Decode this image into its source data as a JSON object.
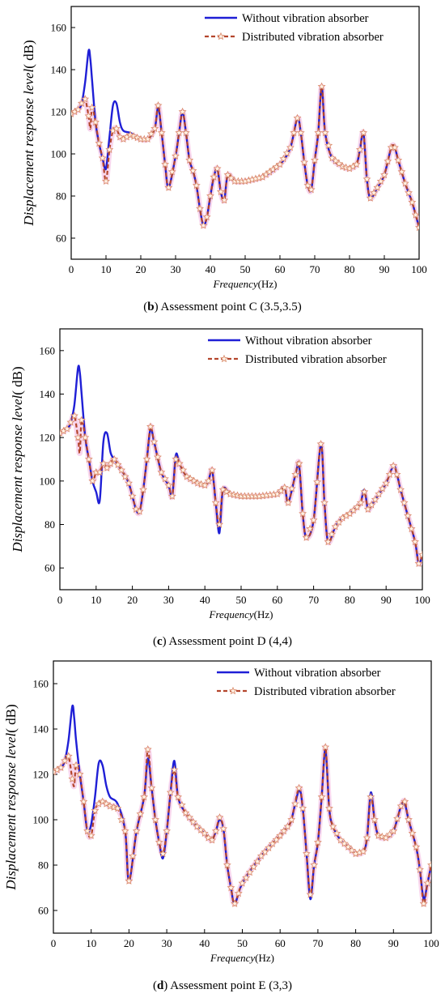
{
  "colors": {
    "without": "#1f1fd6",
    "distributed": "#b4452c",
    "marker_fill": "#fff2e6",
    "marker_stroke": "#d98a6a",
    "glow": "#f5c4e6"
  },
  "legend": {
    "without": "Without vibration absorber",
    "distributed": "Distributed vibration absorber"
  },
  "chart_data": [
    {
      "type": "line",
      "panel_letter": "b",
      "caption": "Assessment point C (3.5,3.5)",
      "xlabel_italic": "Frequency",
      "xlabel_unit": "(Hz)",
      "ylabel_italic": "Displacement response level",
      "ylabel_unit": "( dB)",
      "xlim": [
        0,
        100
      ],
      "ylim": [
        50,
        170
      ],
      "xticks": [
        0,
        10,
        20,
        30,
        40,
        50,
        60,
        70,
        80,
        90,
        100
      ],
      "yticks": [
        60,
        80,
        100,
        120,
        140,
        160
      ],
      "legend_position": "top-right",
      "series": [
        {
          "name": "Without vibration absorber",
          "x": [
            0,
            2,
            3,
            4,
            5,
            5.5,
            6,
            7,
            8,
            9,
            10,
            11,
            12,
            13,
            14,
            15,
            17,
            20,
            22,
            24,
            25,
            26,
            27,
            28,
            30,
            31,
            32,
            33,
            34,
            35,
            36,
            37,
            38,
            39,
            40,
            41,
            42,
            43,
            44,
            45,
            47,
            50,
            55,
            60,
            63,
            65,
            66,
            67,
            68,
            69,
            70,
            71,
            72,
            73,
            75,
            78,
            80,
            82,
            83,
            84,
            85,
            86,
            88,
            90,
            92,
            93,
            94,
            96,
            98,
            100
          ],
          "y": [
            119,
            121,
            124,
            134,
            149,
            145,
            135,
            115,
            105,
            98,
            93,
            108,
            123,
            124,
            115,
            111,
            110,
            107,
            107,
            112,
            122,
            110,
            95,
            84,
            99,
            110,
            120,
            110,
            97,
            92,
            85,
            74,
            66,
            70,
            80,
            89,
            93,
            82,
            78,
            90,
            87,
            87,
            89,
            95,
            103,
            117,
            110,
            96,
            85,
            83,
            97,
            110,
            132,
            110,
            98,
            94,
            93,
            95,
            102,
            110,
            88,
            79,
            84,
            90,
            103,
            103,
            97,
            86,
            77,
            65
          ]
        },
        {
          "name": "Distributed vibration absorber",
          "x": [
            0,
            2,
            3,
            4,
            5,
            5.5,
            6,
            7,
            8,
            9,
            10,
            11,
            12,
            13,
            14,
            15,
            17,
            20,
            22,
            24,
            25,
            26,
            27,
            28,
            30,
            31,
            32,
            33,
            34,
            35,
            36,
            37,
            38,
            39,
            40,
            41,
            42,
            43,
            44,
            45,
            47,
            50,
            55,
            60,
            63,
            65,
            66,
            67,
            68,
            69,
            70,
            71,
            72,
            73,
            75,
            78,
            80,
            82,
            83,
            84,
            85,
            86,
            88,
            90,
            92,
            93,
            94,
            96,
            98,
            100
          ],
          "y": [
            119,
            121,
            124,
            126,
            118,
            112,
            122,
            115,
            105,
            98,
            87,
            102,
            111,
            112,
            108,
            107,
            109,
            107,
            107,
            112,
            123,
            110,
            95,
            84,
            99,
            110,
            120,
            110,
            97,
            92,
            85,
            74,
            66,
            70,
            80,
            89,
            93,
            82,
            78,
            90,
            87,
            87,
            89,
            95,
            103,
            117,
            110,
            96,
            85,
            83,
            97,
            110,
            132,
            110,
            98,
            94,
            93,
            95,
            102,
            110,
            88,
            79,
            84,
            90,
            103,
            103,
            97,
            86,
            77,
            65
          ]
        }
      ]
    },
    {
      "type": "line",
      "panel_letter": "c",
      "caption": "Assessment point D (4,4)",
      "xlabel_italic": "Frequency",
      "xlabel_unit": "(Hz)",
      "ylabel_italic": "Displacement response level",
      "ylabel_unit": "( dB)",
      "xlim": [
        0,
        100
      ],
      "ylim": [
        50,
        170
      ],
      "xticks": [
        0,
        10,
        20,
        30,
        40,
        50,
        60,
        70,
        80,
        90,
        100
      ],
      "yticks": [
        60,
        80,
        100,
        120,
        140,
        160
      ],
      "legend_position": "top-right",
      "series": [
        {
          "name": "Without vibration absorber",
          "x": [
            0,
            2,
            3,
            4,
            5,
            5.5,
            6,
            7,
            8,
            9,
            10,
            11,
            12,
            13,
            14,
            15,
            17,
            19,
            21,
            22,
            23,
            24,
            25,
            26,
            28,
            30,
            31,
            32,
            33,
            35,
            38,
            40,
            41,
            42,
            43,
            44,
            45,
            47,
            50,
            55,
            60,
            62,
            63,
            65,
            66,
            67,
            68,
            70,
            72,
            73,
            74,
            76,
            78,
            80,
            82,
            83,
            84,
            85,
            86,
            88,
            90,
            92,
            93,
            94,
            96,
            98,
            99,
            100
          ],
          "y": [
            122,
            124,
            127,
            135,
            152,
            150,
            140,
            120,
            110,
            100,
            95,
            91,
            118,
            122,
            113,
            110,
            105,
            99,
            87,
            86,
            96,
            110,
            124,
            118,
            104,
            98,
            93,
            112,
            108,
            102,
            99,
            98,
            100,
            105,
            90,
            76,
            96,
            94,
            93,
            93,
            94,
            97,
            90,
            103,
            107,
            85,
            74,
            82,
            117,
            90,
            72,
            79,
            83,
            85,
            88,
            90,
            96,
            87,
            89,
            94,
            99,
            107,
            103,
            96,
            84,
            72,
            62,
            66
          ]
        },
        {
          "name": "Distributed vibration absorber",
          "x": [
            0,
            2,
            3,
            4,
            5,
            5.5,
            6,
            7,
            8,
            9,
            10,
            11,
            12,
            13,
            14,
            15,
            17,
            19,
            21,
            22,
            23,
            24,
            25,
            26,
            28,
            30,
            31,
            32,
            33,
            35,
            38,
            40,
            41,
            42,
            43,
            44,
            45,
            47,
            50,
            55,
            60,
            62,
            63,
            65,
            66,
            67,
            68,
            70,
            72,
            73,
            74,
            76,
            78,
            80,
            82,
            83,
            84,
            85,
            86,
            88,
            90,
            92,
            93,
            94,
            96,
            98,
            99,
            100
          ],
          "y": [
            122,
            124,
            127,
            130,
            120,
            113,
            128,
            120,
            110,
            100,
            104,
            104,
            108,
            106,
            108,
            110,
            105,
            99,
            87,
            86,
            96,
            110,
            125,
            118,
            104,
            98,
            93,
            110,
            108,
            102,
            99,
            98,
            100,
            105,
            90,
            80,
            96,
            94,
            93,
            93,
            94,
            97,
            90,
            103,
            108,
            85,
            74,
            82,
            117,
            90,
            72,
            79,
            83,
            85,
            88,
            90,
            95,
            87,
            89,
            94,
            99,
            107,
            103,
            96,
            84,
            72,
            62,
            66
          ]
        }
      ]
    },
    {
      "type": "line",
      "panel_letter": "d",
      "caption": "Assessment point E (3,3)",
      "xlabel_italic": "Frequency",
      "xlabel_unit": "(Hz)",
      "ylabel_italic": "Displacement response level",
      "ylabel_unit": "( dB)",
      "xlim": [
        0,
        100
      ],
      "ylim": [
        50,
        170
      ],
      "xticks": [
        0,
        10,
        20,
        30,
        40,
        50,
        60,
        70,
        80,
        90,
        100
      ],
      "yticks": [
        60,
        80,
        100,
        120,
        140,
        160
      ],
      "legend_position": "top-right",
      "series": [
        {
          "name": "Without vibration absorber",
          "x": [
            0,
            2,
            3,
            4,
            5,
            5.5,
            6,
            7,
            8,
            9,
            10,
            11,
            12,
            13,
            14,
            15,
            17,
            19,
            20,
            22,
            24,
            25,
            26,
            27,
            28,
            29,
            30,
            31,
            32,
            33,
            35,
            38,
            40,
            41,
            42,
            43,
            44,
            45,
            46,
            47,
            48,
            50,
            55,
            60,
            62,
            63,
            65,
            66,
            67,
            68,
            69,
            70,
            71,
            72,
            73,
            74,
            76,
            78,
            80,
            82,
            83,
            84,
            85,
            86,
            88,
            90,
            92,
            93,
            94,
            96,
            97,
            98,
            99,
            100
          ],
          "y": [
            121,
            123,
            126,
            135,
            150,
            145,
            135,
            120,
            108,
            95,
            98,
            110,
            125,
            124,
            115,
            110,
            107,
            95,
            73,
            95,
            110,
            127,
            114,
            100,
            90,
            83,
            95,
            112,
            126,
            110,
            103,
            97,
            94,
            92,
            91,
            95,
            100,
            96,
            80,
            70,
            63,
            72,
            84,
            93,
            97,
            100,
            113,
            105,
            85,
            65,
            80,
            90,
            110,
            131,
            105,
            97,
            91,
            88,
            85,
            86,
            92,
            112,
            100,
            93,
            92,
            95,
            106,
            107,
            100,
            88,
            78,
            65,
            72,
            80
          ]
        },
        {
          "name": "Distributed vibration absorber",
          "x": [
            0,
            2,
            3,
            4,
            5,
            5.5,
            6,
            7,
            8,
            9,
            10,
            11,
            12,
            13,
            14,
            15,
            17,
            19,
            20,
            22,
            24,
            25,
            26,
            27,
            28,
            29,
            30,
            31,
            32,
            33,
            35,
            38,
            40,
            41,
            42,
            43,
            44,
            45,
            46,
            47,
            48,
            50,
            55,
            60,
            62,
            63,
            65,
            66,
            67,
            68,
            69,
            70,
            71,
            72,
            73,
            74,
            76,
            78,
            80,
            82,
            83,
            84,
            85,
            86,
            88,
            90,
            92,
            93,
            94,
            96,
            97,
            98,
            99,
            100
          ],
          "y": [
            121,
            123,
            126,
            128,
            118,
            115,
            124,
            120,
            108,
            95,
            93,
            104,
            107,
            108,
            107,
            106,
            105,
            95,
            73,
            95,
            110,
            131,
            114,
            100,
            90,
            85,
            95,
            112,
            122,
            110,
            103,
            97,
            94,
            92,
            91,
            95,
            101,
            96,
            80,
            70,
            63,
            72,
            84,
            93,
            97,
            100,
            114,
            105,
            85,
            67,
            80,
            90,
            110,
            132,
            105,
            97,
            91,
            88,
            85,
            86,
            92,
            110,
            100,
            93,
            92,
            95,
            106,
            108,
            100,
            88,
            78,
            63,
            72,
            80
          ]
        }
      ]
    }
  ]
}
